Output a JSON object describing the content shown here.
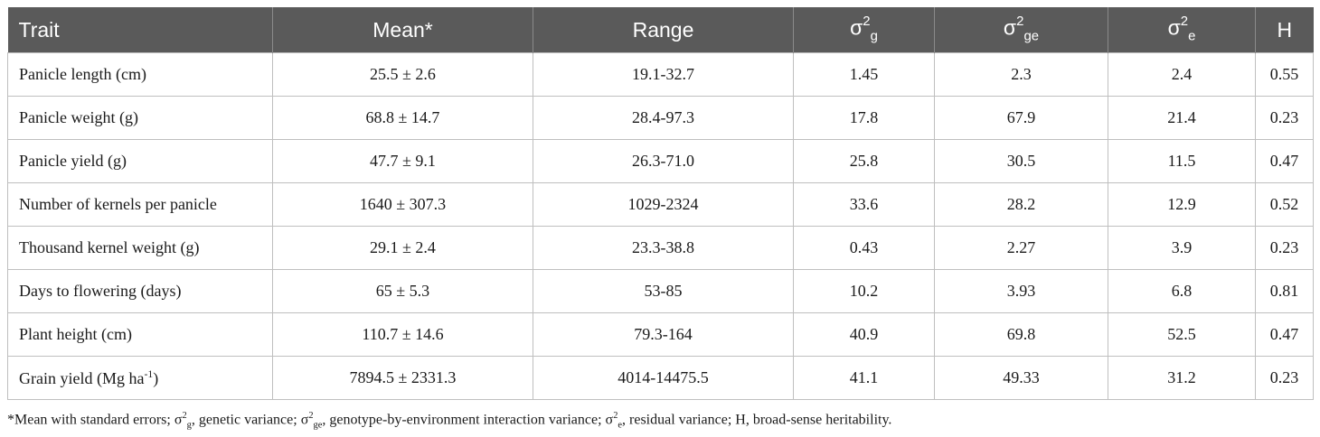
{
  "table": {
    "headers": {
      "trait": "Trait",
      "mean": "Mean*",
      "range": "Range",
      "sg_base": "σ",
      "sg_sup": "2",
      "sg_sub": "g",
      "sge_base": "σ",
      "sge_sup": "2",
      "sge_sub": "ge",
      "se_base": "σ",
      "se_sup": "2",
      "se_sub": "e",
      "h": "H"
    },
    "rows": [
      {
        "trait": "Panicle length (cm)",
        "mean": "25.5 ± 2.6",
        "range": "19.1-32.7",
        "sg": "1.45",
        "sge": "2.3",
        "se": "2.4",
        "h": "0.55"
      },
      {
        "trait": "Panicle weight (g)",
        "mean": "68.8 ± 14.7",
        "range": "28.4-97.3",
        "sg": "17.8",
        "sge": "67.9",
        "se": "21.4",
        "h": "0.23"
      },
      {
        "trait": "Panicle yield (g)",
        "mean": "47.7 ± 9.1",
        "range": "26.3-71.0",
        "sg": "25.8",
        "sge": "30.5",
        "se": "11.5",
        "h": "0.47"
      },
      {
        "trait": "Number of kernels per panicle",
        "mean": "1640 ± 307.3",
        "range": "1029-2324",
        "sg": "33.6",
        "sge": "28.2",
        "se": "12.9",
        "h": "0.52"
      },
      {
        "trait": "Thousand kernel weight (g)",
        "mean": "29.1 ± 2.4",
        "range": "23.3-38.8",
        "sg": "0.43",
        "sge": "2.27",
        "se": "3.9",
        "h": "0.23"
      },
      {
        "trait": "Days to flowering (days)",
        "mean": "65 ± 5.3",
        "range": "53-85",
        "sg": "10.2",
        "sge": "3.93",
        "se": "6.8",
        "h": "0.81"
      },
      {
        "trait": "Plant height (cm)",
        "mean": "110.7 ± 14.6",
        "range": "79.3-164",
        "sg": "40.9",
        "sge": "69.8",
        "se": "52.5",
        "h": "0.47"
      },
      {
        "trait_base": "Grain yield (Mg ha",
        "trait_sup": "-1",
        "trait_end": ")",
        "mean": "7894.5 ± 2331.3",
        "range": "4014-14475.5",
        "sg": "41.1",
        "sge": "49.33",
        "se": "31.2",
        "h": "0.23"
      }
    ]
  },
  "footnote": {
    "p1": "*Mean with standard errors; σ",
    "p1_sup": "2",
    "p1_sub": "g",
    "p2": ", genetic variance; σ",
    "p2_sup": "2",
    "p2_sub": "ge",
    "p3": ", genotype-by-environment interaction variance; σ",
    "p3_sup": "2",
    "p3_sub": "e",
    "p4": ", residual variance; H, broad-sense heritability."
  }
}
